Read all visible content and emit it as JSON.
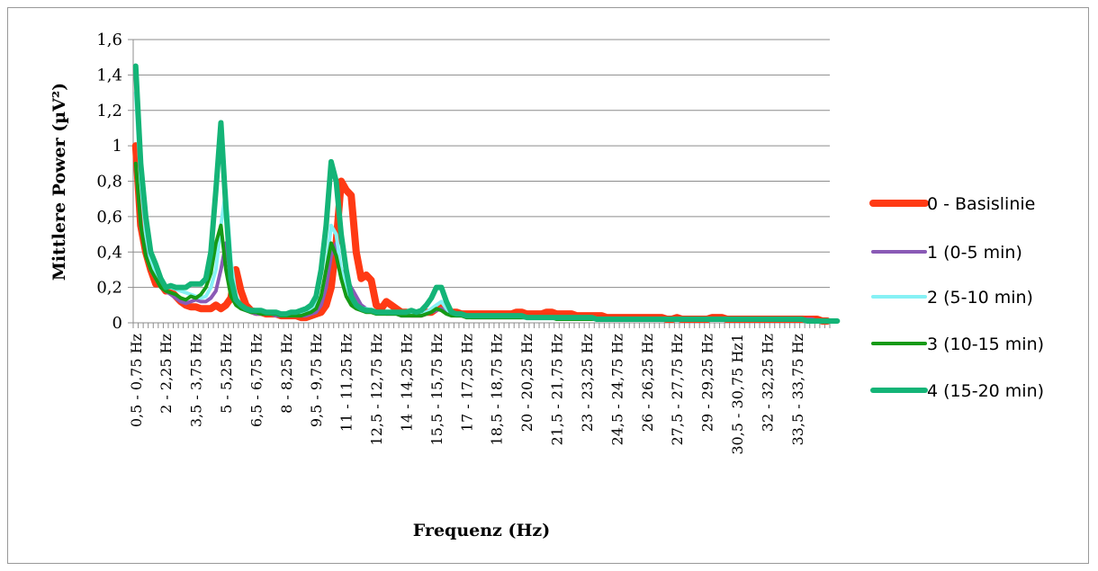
{
  "chart_data": {
    "type": "line",
    "title": "",
    "xlabel": "Frequenz (Hz)",
    "ylabel": "Mittlere Power (µV²)",
    "ylim": [
      0,
      1.6
    ],
    "y_ticks": [
      "0",
      "0,2",
      "0,4",
      "0,6",
      "0,8",
      "1",
      "1,2",
      "1,4",
      "1,6"
    ],
    "x_tick_labels": [
      "0,5 - 0,75 Hz",
      "2 - 2,25 Hz",
      "3,5 - 3,75 Hz",
      "5 - 5,25 Hz",
      "6,5 - 6,75 Hz",
      "8 - 8,25 Hz",
      "9,5 - 9,75 Hz",
      "11 - 11,25 Hz",
      "12,5 - 12,75 Hz",
      "14 - 14,25 Hz",
      "15,5 - 15,75 Hz",
      "17 - 17,25 Hz",
      "18,5 - 18,75 Hz",
      "20 - 20,25 Hz",
      "21,5 - 21,75 Hz",
      "23 - 23,25 Hz",
      "24,5 - 24,75 Hz",
      "26 - 26,25 Hz",
      "27,5 - 27,75 Hz",
      "29 - 29,25 Hz",
      "30,5 - 30,75 Hz1",
      "32 - 32,25 Hz",
      "33,5 - 33,75 Hz"
    ],
    "x_start_freq": 0.5,
    "x_step_freq": 0.25,
    "point_count": 139,
    "legend_position": "right",
    "grid": true,
    "series": [
      {
        "name": "0 - Basislinie",
        "color": "#ff3a14",
        "width": 8,
        "values": [
          1.0,
          0.55,
          0.4,
          0.3,
          0.22,
          0.22,
          0.18,
          0.18,
          0.15,
          0.12,
          0.1,
          0.09,
          0.09,
          0.08,
          0.08,
          0.08,
          0.1,
          0.08,
          0.1,
          0.14,
          0.3,
          0.18,
          0.1,
          0.07,
          0.06,
          0.06,
          0.05,
          0.05,
          0.05,
          0.04,
          0.04,
          0.04,
          0.04,
          0.03,
          0.03,
          0.04,
          0.05,
          0.06,
          0.1,
          0.2,
          0.45,
          0.8,
          0.75,
          0.72,
          0.4,
          0.25,
          0.27,
          0.24,
          0.1,
          0.08,
          0.12,
          0.1,
          0.08,
          0.06,
          0.06,
          0.05,
          0.05,
          0.05,
          0.06,
          0.06,
          0.08,
          0.1,
          0.08,
          0.06,
          0.06,
          0.05,
          0.05,
          0.05,
          0.05,
          0.05,
          0.05,
          0.05,
          0.05,
          0.05,
          0.05,
          0.05,
          0.06,
          0.06,
          0.05,
          0.05,
          0.05,
          0.05,
          0.06,
          0.06,
          0.05,
          0.05,
          0.05,
          0.05,
          0.04,
          0.04,
          0.04,
          0.04,
          0.04,
          0.04,
          0.03,
          0.03,
          0.03,
          0.03,
          0.03,
          0.03,
          0.03,
          0.03,
          0.03,
          0.03,
          0.03,
          0.03,
          0.02,
          0.02,
          0.03,
          0.02,
          0.02,
          0.02,
          0.02,
          0.02,
          0.02,
          0.03,
          0.03,
          0.03,
          0.02,
          0.02,
          0.02,
          0.02,
          0.02,
          0.02,
          0.02,
          0.02,
          0.02,
          0.02,
          0.02,
          0.02,
          0.02,
          0.02,
          0.02,
          0.02,
          0.02,
          0.02,
          0.02,
          0.01,
          0.01
        ]
      },
      {
        "name": "1 (0-5 min)",
        "color": "#8a5ab6",
        "width": 4,
        "values": [
          0.9,
          0.55,
          0.4,
          0.3,
          0.25,
          0.2,
          0.18,
          0.16,
          0.14,
          0.12,
          0.11,
          0.12,
          0.13,
          0.12,
          0.12,
          0.14,
          0.18,
          0.3,
          0.45,
          0.25,
          0.12,
          0.08,
          0.07,
          0.06,
          0.05,
          0.05,
          0.05,
          0.05,
          0.04,
          0.04,
          0.04,
          0.04,
          0.04,
          0.04,
          0.04,
          0.05,
          0.06,
          0.1,
          0.2,
          0.38,
          0.45,
          0.3,
          0.25,
          0.2,
          0.15,
          0.1,
          0.08,
          0.07,
          0.06,
          0.06,
          0.05,
          0.05,
          0.05,
          0.04,
          0.04,
          0.04,
          0.04,
          0.04,
          0.05,
          0.06,
          0.07,
          0.08,
          0.06,
          0.05,
          0.04,
          0.04,
          0.04,
          0.03,
          0.03,
          0.03,
          0.03,
          0.03,
          0.03,
          0.03,
          0.03,
          0.03,
          0.03,
          0.03,
          0.03,
          0.03,
          0.03,
          0.03,
          0.03,
          0.03,
          0.03,
          0.03,
          0.03,
          0.03,
          0.02,
          0.02,
          0.02,
          0.02,
          0.02,
          0.02,
          0.02,
          0.02,
          0.02,
          0.02,
          0.02,
          0.02,
          0.02,
          0.02,
          0.02,
          0.02,
          0.02,
          0.02,
          0.02,
          0.02,
          0.02,
          0.02,
          0.02,
          0.02,
          0.02,
          0.02,
          0.02,
          0.02,
          0.02,
          0.02,
          0.02,
          0.02,
          0.02,
          0.02,
          0.02,
          0.02,
          0.02,
          0.02,
          0.02,
          0.02,
          0.02,
          0.02,
          0.02,
          0.02,
          0.02,
          0.02,
          0.02,
          0.02,
          0.01,
          0.01,
          0.01
        ]
      },
      {
        "name": "2 (5-10 min)",
        "color": "#86f1f5",
        "width": 4,
        "values": [
          1.3,
          0.8,
          0.5,
          0.35,
          0.28,
          0.22,
          0.2,
          0.2,
          0.19,
          0.18,
          0.17,
          0.16,
          0.15,
          0.14,
          0.15,
          0.2,
          0.3,
          0.55,
          0.75,
          0.35,
          0.15,
          0.1,
          0.08,
          0.07,
          0.06,
          0.06,
          0.06,
          0.06,
          0.05,
          0.05,
          0.05,
          0.05,
          0.05,
          0.05,
          0.06,
          0.07,
          0.1,
          0.15,
          0.3,
          0.55,
          0.5,
          0.3,
          0.2,
          0.12,
          0.1,
          0.08,
          0.08,
          0.07,
          0.06,
          0.06,
          0.06,
          0.05,
          0.05,
          0.05,
          0.05,
          0.05,
          0.05,
          0.05,
          0.06,
          0.08,
          0.1,
          0.12,
          0.08,
          0.05,
          0.04,
          0.04,
          0.04,
          0.04,
          0.04,
          0.04,
          0.04,
          0.04,
          0.04,
          0.04,
          0.03,
          0.03,
          0.03,
          0.03,
          0.03,
          0.03,
          0.03,
          0.03,
          0.03,
          0.03,
          0.03,
          0.03,
          0.03,
          0.03,
          0.03,
          0.02,
          0.02,
          0.02,
          0.02,
          0.02,
          0.02,
          0.02,
          0.02,
          0.02,
          0.02,
          0.02,
          0.02,
          0.02,
          0.02,
          0.02,
          0.02,
          0.02,
          0.02,
          0.02,
          0.02,
          0.02,
          0.02,
          0.02,
          0.02,
          0.02,
          0.02,
          0.02,
          0.02,
          0.02,
          0.02,
          0.02,
          0.02,
          0.02,
          0.02,
          0.02,
          0.02,
          0.02,
          0.02,
          0.02,
          0.02,
          0.02,
          0.02,
          0.02,
          0.02,
          0.02,
          0.01,
          0.01,
          0.01,
          0.01,
          0.01
        ]
      },
      {
        "name": "3 (10-15 min)",
        "color": "#169a16",
        "width": 4,
        "values": [
          0.9,
          0.55,
          0.38,
          0.3,
          0.25,
          0.2,
          0.18,
          0.17,
          0.16,
          0.14,
          0.13,
          0.15,
          0.14,
          0.16,
          0.2,
          0.28,
          0.45,
          0.55,
          0.3,
          0.15,
          0.1,
          0.08,
          0.07,
          0.06,
          0.06,
          0.05,
          0.05,
          0.05,
          0.05,
          0.04,
          0.04,
          0.04,
          0.04,
          0.04,
          0.05,
          0.06,
          0.08,
          0.15,
          0.3,
          0.45,
          0.38,
          0.25,
          0.15,
          0.1,
          0.08,
          0.07,
          0.06,
          0.06,
          0.05,
          0.05,
          0.05,
          0.05,
          0.05,
          0.04,
          0.04,
          0.04,
          0.04,
          0.04,
          0.05,
          0.06,
          0.08,
          0.07,
          0.05,
          0.04,
          0.04,
          0.04,
          0.03,
          0.03,
          0.03,
          0.03,
          0.03,
          0.03,
          0.03,
          0.03,
          0.03,
          0.03,
          0.03,
          0.03,
          0.03,
          0.03,
          0.03,
          0.03,
          0.03,
          0.03,
          0.02,
          0.02,
          0.02,
          0.02,
          0.02,
          0.02,
          0.02,
          0.02,
          0.02,
          0.02,
          0.02,
          0.02,
          0.02,
          0.02,
          0.02,
          0.02,
          0.02,
          0.02,
          0.02,
          0.02,
          0.02,
          0.02,
          0.02,
          0.02,
          0.02,
          0.02,
          0.02,
          0.02,
          0.02,
          0.02,
          0.02,
          0.02,
          0.02,
          0.02,
          0.02,
          0.02,
          0.02,
          0.02,
          0.02,
          0.02,
          0.02,
          0.02,
          0.02,
          0.02,
          0.02,
          0.02,
          0.02,
          0.02,
          0.02,
          0.02,
          0.01,
          0.01,
          0.01,
          0.01,
          0.01
        ]
      },
      {
        "name": "4 (15-20 min)",
        "color": "#14b477",
        "width": 6,
        "values": [
          1.45,
          0.9,
          0.6,
          0.4,
          0.33,
          0.25,
          0.2,
          0.21,
          0.2,
          0.2,
          0.2,
          0.22,
          0.22,
          0.22,
          0.25,
          0.4,
          0.75,
          1.13,
          0.65,
          0.25,
          0.13,
          0.1,
          0.08,
          0.07,
          0.07,
          0.07,
          0.06,
          0.06,
          0.06,
          0.05,
          0.05,
          0.06,
          0.06,
          0.07,
          0.08,
          0.1,
          0.15,
          0.3,
          0.55,
          0.91,
          0.8,
          0.5,
          0.3,
          0.15,
          0.1,
          0.08,
          0.07,
          0.07,
          0.06,
          0.06,
          0.06,
          0.06,
          0.06,
          0.06,
          0.06,
          0.07,
          0.06,
          0.07,
          0.1,
          0.14,
          0.2,
          0.2,
          0.12,
          0.06,
          0.05,
          0.05,
          0.04,
          0.04,
          0.04,
          0.04,
          0.04,
          0.04,
          0.04,
          0.04,
          0.04,
          0.04,
          0.04,
          0.04,
          0.03,
          0.03,
          0.03,
          0.03,
          0.03,
          0.03,
          0.03,
          0.03,
          0.03,
          0.03,
          0.03,
          0.03,
          0.03,
          0.03,
          0.02,
          0.02,
          0.02,
          0.02,
          0.02,
          0.02,
          0.02,
          0.02,
          0.02,
          0.02,
          0.02,
          0.02,
          0.02,
          0.02,
          0.02,
          0.02,
          0.02,
          0.02,
          0.02,
          0.02,
          0.02,
          0.02,
          0.02,
          0.02,
          0.02,
          0.02,
          0.02,
          0.02,
          0.02,
          0.02,
          0.02,
          0.02,
          0.02,
          0.02,
          0.02,
          0.02,
          0.02,
          0.02,
          0.02,
          0.02,
          0.02,
          0.02,
          0.01,
          0.01,
          0.01,
          0.01,
          0.01,
          0.01,
          0.01
        ]
      }
    ]
  }
}
